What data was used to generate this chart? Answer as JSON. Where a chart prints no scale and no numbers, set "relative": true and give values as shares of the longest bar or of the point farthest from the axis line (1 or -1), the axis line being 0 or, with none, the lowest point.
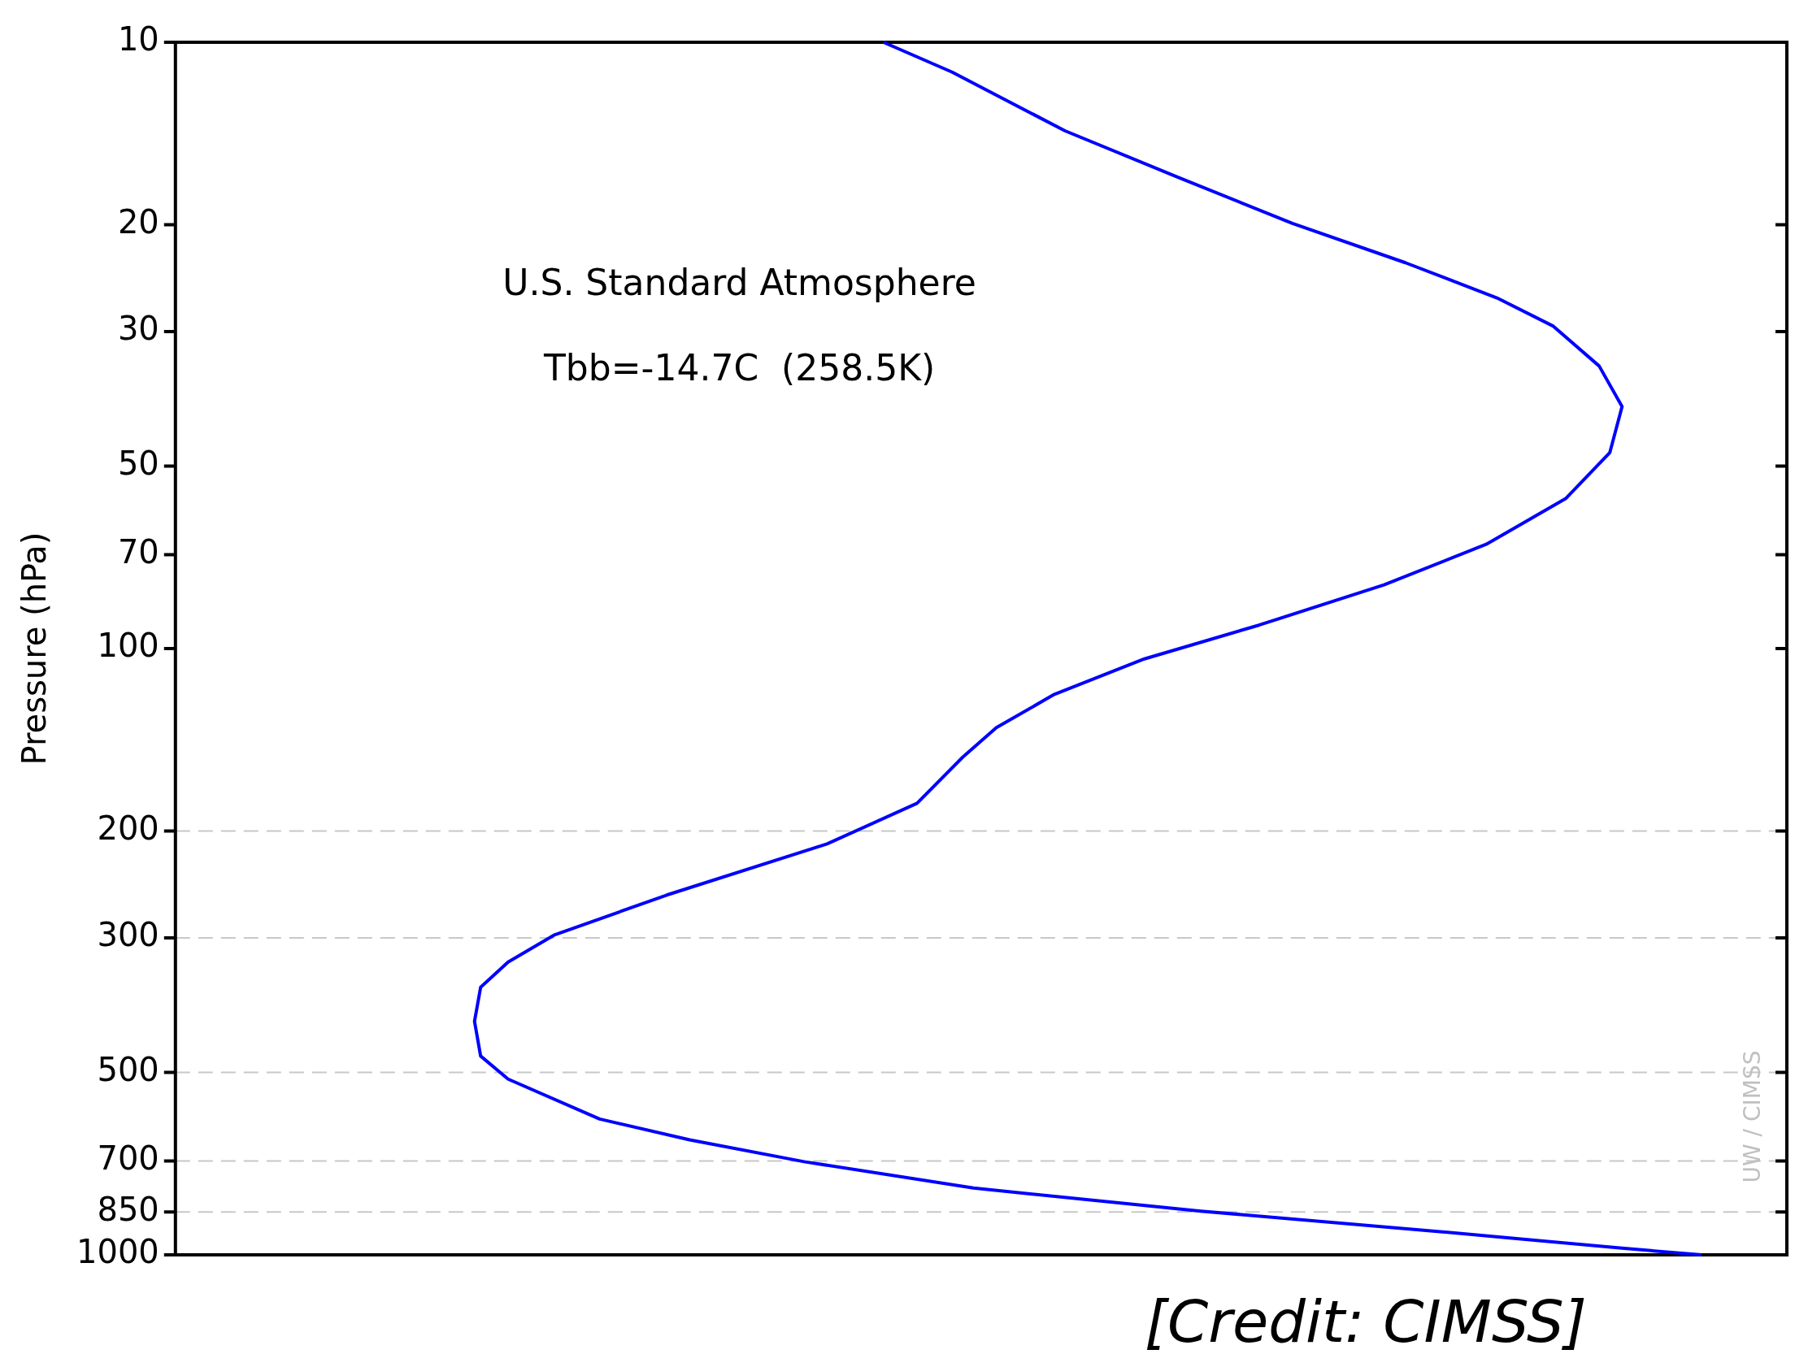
{
  "chart_data": {
    "type": "line",
    "relative": true,
    "orientation": "horizontal",
    "log": "y",
    "ylabel": "Pressure (hPa)",
    "ylim": [
      1000,
      10
    ],
    "yticks": [
      10,
      20,
      30,
      50,
      70,
      100,
      200,
      300,
      500,
      700,
      850,
      1000
    ],
    "tick_labels": "y",
    "legend": false,
    "marker": "none",
    "line_style": "solid",
    "grid": false,
    "annotations": [
      "U.S. Standard Atmosphere",
      "Tbb=-14.7C  (258.5K)",
      "UW / CIMSS",
      "[Credit: CIMSS]"
    ],
    "ref_lines": [
      {
        "axis": "y",
        "value": 200,
        "color": "#c8c8c8",
        "line_style": "dashed"
      },
      {
        "axis": "y",
        "value": 300,
        "color": "#c8c8c8",
        "line_style": "dashed"
      },
      {
        "axis": "y",
        "value": 500,
        "color": "#c8c8c8",
        "line_style": "dashed"
      },
      {
        "axis": "y",
        "value": 700,
        "color": "#c8c8c8",
        "line_style": "dashed"
      },
      {
        "axis": "y",
        "value": 850,
        "color": "#c8c8c8",
        "line_style": "dashed"
      }
    ],
    "series": [
      {
        "color": "#0000ff",
        "x": [
          10,
          11.2,
          14,
          16.7,
          19.9,
          23.1,
          26.4,
          29.4,
          34.2,
          39.9,
          47.5,
          56.6,
          67.3,
          78.5,
          91.5,
          104,
          119,
          135,
          151,
          180,
          210,
          255,
          297,
          329,
          362,
          412,
          470,
          513,
          597,
          646,
          702,
          776,
          847,
          912,
          975,
          1000
        ],
        "values": [
          0.464,
          0.509,
          0.583,
          0.657,
          0.732,
          0.806,
          0.866,
          0.903,
          0.933,
          0.948,
          0.94,
          0.911,
          0.859,
          0.792,
          0.71,
          0.635,
          0.576,
          0.538,
          0.516,
          0.486,
          0.427,
          0.322,
          0.248,
          0.218,
          0.2,
          0.196,
          0.2,
          0.218,
          0.278,
          0.337,
          0.412,
          0.523,
          0.672,
          0.821,
          0.948,
          1.0
        ]
      }
    ]
  }
}
